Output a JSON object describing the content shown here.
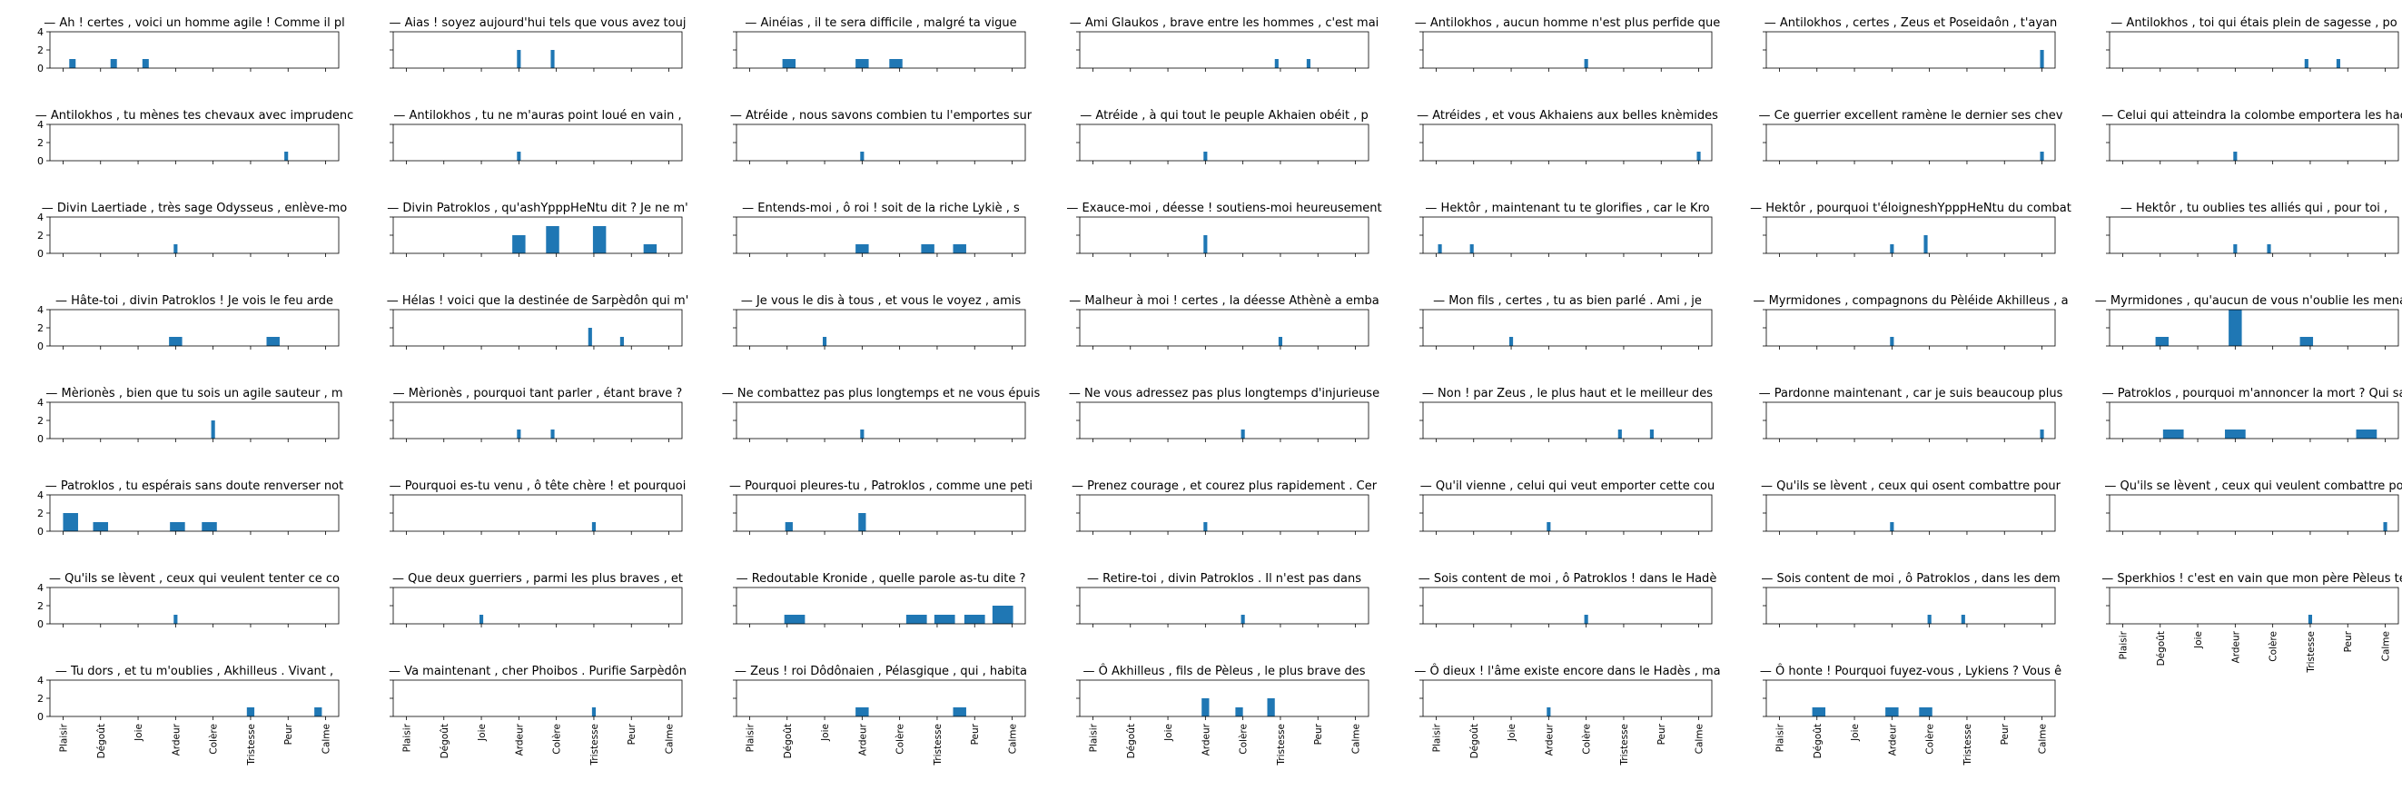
{
  "figure": {
    "categories": [
      "Plaisir",
      "Dégoût",
      "Joie",
      "Ardeur",
      "Colère",
      "Tristesse",
      "Peur",
      "Calme"
    ],
    "y_ticks": [
      0,
      2,
      4
    ],
    "ylim": [
      0,
      4
    ],
    "bar_color": "#1f77b4"
  },
  "chart_data": [
    {
      "type": "histogram",
      "title": "— Ah ! certes , voici un homme agile ! Comme il pl",
      "x": [
        0.25,
        1.35,
        2.2
      ],
      "widths": [
        0.17,
        0.17,
        0.17
      ],
      "values": [
        1,
        1,
        1
      ]
    },
    {
      "type": "histogram",
      "title": "— Aias ! soyez aujourd'hui tels que vous avez touj",
      "x": [
        3.0,
        3.9
      ],
      "widths": [
        0.1,
        0.1
      ],
      "values": [
        2,
        2
      ]
    },
    {
      "type": "histogram",
      "title": "— Ainéias , il te sera difficile , malgré ta vigue",
      "x": [
        1.05,
        3.0,
        3.9
      ],
      "widths": [
        0.35,
        0.35,
        0.35
      ],
      "values": [
        1,
        1,
        1
      ]
    },
    {
      "type": "histogram",
      "title": "— Ami Glaukos , brave entre les hommes , c'est mai",
      "x": [
        4.9,
        5.75
      ],
      "widths": [
        0.1,
        0.1
      ],
      "values": [
        1,
        1
      ]
    },
    {
      "type": "histogram",
      "title": "— Antilokhos , aucun homme n'est plus perfide que",
      "x": [
        4.0
      ],
      "widths": [
        0.1
      ],
      "values": [
        1
      ]
    },
    {
      "type": "histogram",
      "title": "— Antilokhos , certes , Zeus et Poseidaôn , t'ayan",
      "x": [
        7.0
      ],
      "widths": [
        0.1
      ],
      "values": [
        2
      ]
    },
    {
      "type": "histogram",
      "title": "— Antilokhos , toi qui étais plein de sagesse , po",
      "x": [
        4.9,
        5.75
      ],
      "widths": [
        0.1,
        0.1
      ],
      "values": [
        1,
        1
      ]
    },
    {
      "type": "histogram",
      "title": "— Antilokhos , tu mènes tes chevaux avec imprudenc",
      "x": [
        5.95
      ],
      "widths": [
        0.1
      ],
      "values": [
        1
      ]
    },
    {
      "type": "histogram",
      "title": "— Antilokhos , tu ne m'auras point loué en vain ,",
      "x": [
        3.0
      ],
      "widths": [
        0.1
      ],
      "values": [
        1
      ]
    },
    {
      "type": "histogram",
      "title": "— Atréide , nous savons combien tu l'emportes sur",
      "x": [
        3.0
      ],
      "widths": [
        0.1
      ],
      "values": [
        1
      ]
    },
    {
      "type": "histogram",
      "title": "— Atréide , à qui tout le peuple Akhaien obéit , p",
      "x": [
        3.0
      ],
      "widths": [
        0.1
      ],
      "values": [
        1
      ]
    },
    {
      "type": "histogram",
      "title": "— Atréides , et vous Akhaiens aux belles knèmides",
      "x": [
        7.0
      ],
      "widths": [
        0.1
      ],
      "values": [
        1
      ]
    },
    {
      "type": "histogram",
      "title": "— Ce guerrier excellent ramène le dernier ses chev",
      "x": [
        7.0
      ],
      "widths": [
        0.1
      ],
      "values": [
        1
      ]
    },
    {
      "type": "histogram",
      "title": "— Celui qui atteindra la colombe emportera les hac",
      "x": [
        3.0
      ],
      "widths": [
        0.1
      ],
      "values": [
        1
      ]
    },
    {
      "type": "histogram",
      "title": "— Divin Laertiade , très sage Odysseus , enlève-mo",
      "x": [
        3.0
      ],
      "widths": [
        0.1
      ],
      "values": [
        1
      ]
    },
    {
      "type": "histogram",
      "title": "— Divin Patroklos , qu'ashYpppHeNtu dit ? Je ne m'",
      "x": [
        3.0,
        3.9,
        5.15,
        6.5
      ],
      "widths": [
        0.35,
        0.35,
        0.35,
        0.35
      ],
      "values": [
        2,
        3,
        3,
        1
      ]
    },
    {
      "type": "histogram",
      "title": "— Entends-moi , ô roi ! soit de la riche Lykiè , s",
      "x": [
        3.0,
        4.75,
        5.6
      ],
      "widths": [
        0.35,
        0.35,
        0.35
      ],
      "values": [
        1,
        1,
        1
      ]
    },
    {
      "type": "histogram",
      "title": "— Exauce-moi , déesse ! soutiens-moi heureusement",
      "x": [
        3.0
      ],
      "widths": [
        0.1
      ],
      "values": [
        2
      ]
    },
    {
      "type": "histogram",
      "title": "— Hektôr , maintenant tu te glorifies , car le Kro",
      "x": [
        0.1,
        0.95
      ],
      "widths": [
        0.1,
        0.1
      ],
      "values": [
        1,
        1
      ]
    },
    {
      "type": "histogram",
      "title": "— Hektôr , pourquoi t'éloigneshYpppHeNtu du combat",
      "x": [
        3.0,
        3.9
      ],
      "widths": [
        0.1,
        0.1
      ],
      "values": [
        1,
        2
      ]
    },
    {
      "type": "histogram",
      "title": "— Hektôr , tu oublies tes alliés qui , pour toi ,",
      "x": [
        3.0,
        3.9
      ],
      "widths": [
        0.1,
        0.1
      ],
      "values": [
        1,
        1
      ]
    },
    {
      "type": "histogram",
      "title": "— Hâte-toi , divin Patroklos ! Je vois le feu arde",
      "x": [
        3.0,
        5.6
      ],
      "widths": [
        0.35,
        0.35
      ],
      "values": [
        1,
        1
      ]
    },
    {
      "type": "histogram",
      "title": "— Hélas ! voici que la destinée de Sarpèdôn qui m'",
      "x": [
        4.9,
        5.75
      ],
      "widths": [
        0.1,
        0.1
      ],
      "values": [
        2,
        1
      ]
    },
    {
      "type": "histogram",
      "title": "— Je vous le dis à tous , et vous le voyez , amis",
      "x": [
        2.0
      ],
      "widths": [
        0.1
      ],
      "values": [
        1
      ]
    },
    {
      "type": "histogram",
      "title": "— Malheur à moi ! certes , la déesse Athènè a emba",
      "x": [
        5.0
      ],
      "widths": [
        0.1
      ],
      "values": [
        1
      ]
    },
    {
      "type": "histogram",
      "title": "— Mon fils , certes , tu as bien parlé . Ami , je",
      "x": [
        2.0
      ],
      "widths": [
        0.1
      ],
      "values": [
        1
      ]
    },
    {
      "type": "histogram",
      "title": "— Myrmidones , compagnons du Pèléide Akhilleus , a",
      "x": [
        3.0
      ],
      "widths": [
        0.1
      ],
      "values": [
        1
      ]
    },
    {
      "type": "histogram",
      "title": "— Myrmidones , qu'aucun de vous n'oublie les menac",
      "x": [
        1.05,
        3.0,
        4.9
      ],
      "widths": [
        0.35,
        0.35,
        0.35
      ],
      "values": [
        1,
        4,
        1
      ]
    },
    {
      "type": "histogram",
      "title": "— Mèrionès , bien que tu sois un agile sauteur , m",
      "x": [
        4.0
      ],
      "widths": [
        0.1
      ],
      "values": [
        2
      ]
    },
    {
      "type": "histogram",
      "title": "— Mèrionès , pourquoi tant parler , étant brave ?",
      "x": [
        3.0,
        3.9
      ],
      "widths": [
        0.1,
        0.1
      ],
      "values": [
        1,
        1
      ]
    },
    {
      "type": "histogram",
      "title": "— Ne combattez pas plus longtemps et ne vous épuis",
      "x": [
        3.0
      ],
      "widths": [
        0.1
      ],
      "values": [
        1
      ]
    },
    {
      "type": "histogram",
      "title": "— Ne vous adressez pas plus longtemps d'injurieuse",
      "x": [
        4.0
      ],
      "widths": [
        0.1
      ],
      "values": [
        1
      ]
    },
    {
      "type": "histogram",
      "title": "— Non ! par Zeus , le plus haut et le meilleur des",
      "x": [
        4.9,
        5.75
      ],
      "widths": [
        0.1,
        0.1
      ],
      "values": [
        1,
        1
      ]
    },
    {
      "type": "histogram",
      "title": "— Pardonne maintenant , car je suis beaucoup plus",
      "x": [
        7.0
      ],
      "widths": [
        0.1
      ],
      "values": [
        1
      ]
    },
    {
      "type": "histogram",
      "title": "— Patroklos , pourquoi m'annoncer la mort ? Qui sa",
      "x": [
        1.35,
        3.0,
        6.5
      ],
      "widths": [
        0.55,
        0.55,
        0.55
      ],
      "values": [
        1,
        1,
        1
      ]
    },
    {
      "type": "histogram",
      "title": "— Patroklos , tu espérais sans doute renverser not",
      "x": [
        0.2,
        1.0,
        3.05,
        3.9
      ],
      "widths": [
        0.4,
        0.4,
        0.4,
        0.4
      ],
      "values": [
        2,
        1,
        1,
        1
      ]
    },
    {
      "type": "histogram",
      "title": "— Pourquoi es-tu venu , ô tête chère ! et pourquoi",
      "x": [
        5.0
      ],
      "widths": [
        0.1
      ],
      "values": [
        1
      ]
    },
    {
      "type": "histogram",
      "title": "— Pourquoi pleures-tu , Patroklos , comme une peti",
      "x": [
        1.05,
        3.0
      ],
      "widths": [
        0.2,
        0.2
      ],
      "values": [
        1,
        2
      ]
    },
    {
      "type": "histogram",
      "title": "— Prenez courage , et courez plus rapidement . Cer",
      "x": [
        3.0
      ],
      "widths": [
        0.1
      ],
      "values": [
        1
      ]
    },
    {
      "type": "histogram",
      "title": "— Qu'il vienne , celui qui veut emporter cette cou",
      "x": [
        3.0
      ],
      "widths": [
        0.1
      ],
      "values": [
        1
      ]
    },
    {
      "type": "histogram",
      "title": "— Qu'ils se lèvent , ceux qui osent combattre pour",
      "x": [
        3.0
      ],
      "widths": [
        0.1
      ],
      "values": [
        1
      ]
    },
    {
      "type": "histogram",
      "title": "— Qu'ils se lèvent , ceux qui veulent combattre po",
      "x": [
        7.0
      ],
      "widths": [
        0.1
      ],
      "values": [
        1
      ]
    },
    {
      "type": "histogram",
      "title": "— Qu'ils se lèvent , ceux qui veulent tenter ce co",
      "x": [
        3.0
      ],
      "widths": [
        0.1
      ],
      "values": [
        1
      ]
    },
    {
      "type": "histogram",
      "title": "— Que deux guerriers , parmi les plus braves , et",
      "x": [
        2.0
      ],
      "widths": [
        0.1
      ],
      "values": [
        1
      ]
    },
    {
      "type": "histogram",
      "title": "— Redoutable Kronide , quelle parole as-tu dite ?",
      "x": [
        1.2,
        4.45,
        5.2,
        6.0,
        6.75
      ],
      "widths": [
        0.55,
        0.55,
        0.55,
        0.55,
        0.55
      ],
      "values": [
        1,
        1,
        1,
        1,
        2
      ]
    },
    {
      "type": "histogram",
      "title": "— Retire-toi , divin Patroklos . Il n'est pas dans",
      "x": [
        4.0
      ],
      "widths": [
        0.1
      ],
      "values": [
        1
      ]
    },
    {
      "type": "histogram",
      "title": "— Sois content de moi , ô Patroklos ! dans le Hadè",
      "x": [
        4.0
      ],
      "widths": [
        0.1
      ],
      "values": [
        1
      ]
    },
    {
      "type": "histogram",
      "title": "— Sois content de moi , ô Patroklos , dans les dem",
      "x": [
        4.0,
        4.9
      ],
      "widths": [
        0.1,
        0.1
      ],
      "values": [
        1,
        1
      ]
    },
    {
      "type": "histogram",
      "title": "— Sperkhios ! c'est en vain que mon père Pèleus te",
      "x": [
        5.0
      ],
      "widths": [
        0.1
      ],
      "values": [
        1
      ]
    },
    {
      "type": "histogram",
      "title": "— Tu dors , et tu m'oublies , Akhilleus . Vivant ,",
      "x": [
        5.0,
        6.8
      ],
      "widths": [
        0.2,
        0.2
      ],
      "values": [
        1,
        1
      ]
    },
    {
      "type": "histogram",
      "title": "— Va maintenant , cher Phoibos . Purifie Sarpèdôn",
      "x": [
        5.0
      ],
      "widths": [
        0.1
      ],
      "values": [
        1
      ]
    },
    {
      "type": "histogram",
      "title": "— Zeus ! roi Dôdônaien , Pélasgique , qui , habita",
      "x": [
        3.0,
        5.6
      ],
      "widths": [
        0.35,
        0.35
      ],
      "values": [
        1,
        1
      ]
    },
    {
      "type": "histogram",
      "title": "— Ô Akhilleus , fils de Pèleus , le plus brave des",
      "x": [
        3.0,
        3.9,
        4.75
      ],
      "widths": [
        0.2,
        0.2,
        0.2
      ],
      "values": [
        2,
        1,
        2
      ]
    },
    {
      "type": "histogram",
      "title": "— Ô dieux ! l'âme existe encore dans le Hadès , ma",
      "x": [
        3.0
      ],
      "widths": [
        0.1
      ],
      "values": [
        1
      ]
    },
    {
      "type": "histogram",
      "title": "— Ô honte ! Pourquoi fuyez-vous , Lykiens ? Vous ê",
      "x": [
        1.05,
        3.0,
        3.9
      ],
      "widths": [
        0.35,
        0.35,
        0.35
      ],
      "values": [
        1,
        1,
        1
      ]
    }
  ]
}
